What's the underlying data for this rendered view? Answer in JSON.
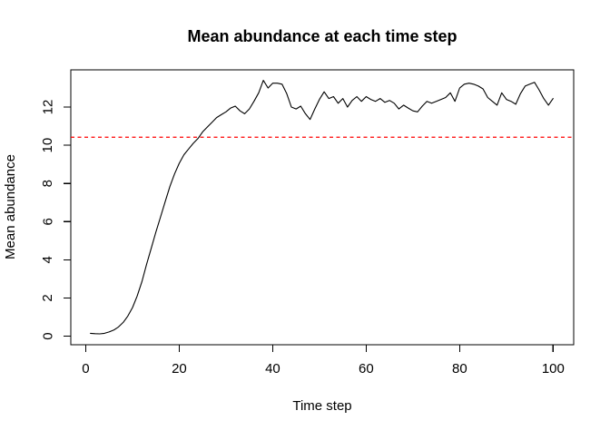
{
  "window": {
    "background": "#ffffff"
  },
  "chart_data": {
    "type": "line",
    "title": "Mean abundance at each time step",
    "xlabel": "Time step",
    "ylabel": "Mean abundance",
    "x_ticks": [
      0,
      20,
      40,
      60,
      80,
      100
    ],
    "y_ticks": [
      0,
      2,
      4,
      6,
      8,
      10,
      12
    ],
    "xlim": [
      -3.2,
      104.4
    ],
    "ylim": [
      -0.45,
      13.95
    ],
    "grid": false,
    "legend": false,
    "x_start": 1,
    "x_step": 1,
    "series": [
      {
        "name": "mean-abundance",
        "color": "#000000",
        "values": [
          0.15,
          0.13,
          0.12,
          0.15,
          0.22,
          0.32,
          0.48,
          0.72,
          1.05,
          1.5,
          2.1,
          2.85,
          3.75,
          4.6,
          5.45,
          6.25,
          7.05,
          7.85,
          8.5,
          9.05,
          9.5,
          9.8,
          10.1,
          10.35,
          10.7,
          10.95,
          11.2,
          11.45,
          11.6,
          11.75,
          11.95,
          12.05,
          11.8,
          11.65,
          11.9,
          12.3,
          12.75,
          13.4,
          13.0,
          13.25,
          13.25,
          13.2,
          12.7,
          12.0,
          11.9,
          12.05,
          11.65,
          11.35,
          11.9,
          12.4,
          12.8,
          12.45,
          12.55,
          12.2,
          12.45,
          12.0,
          12.35,
          12.55,
          12.3,
          12.55,
          12.4,
          12.3,
          12.45,
          12.25,
          12.35,
          12.2,
          11.9,
          12.1,
          11.95,
          11.8,
          11.75,
          12.05,
          12.3,
          12.2,
          12.3,
          12.4,
          12.5,
          12.75,
          12.3,
          13.0,
          13.2,
          13.25,
          13.2,
          13.1,
          12.95,
          12.5,
          12.3,
          12.1,
          12.75,
          12.4,
          12.3,
          12.15,
          12.7,
          13.1,
          13.2,
          13.3,
          12.9,
          12.45,
          12.1,
          12.45
        ]
      }
    ],
    "reference_line": {
      "value": 10.42,
      "color": "#FF0000",
      "style": "dashed"
    },
    "axis_color": "#000000",
    "plot_background": "#ffffff"
  }
}
